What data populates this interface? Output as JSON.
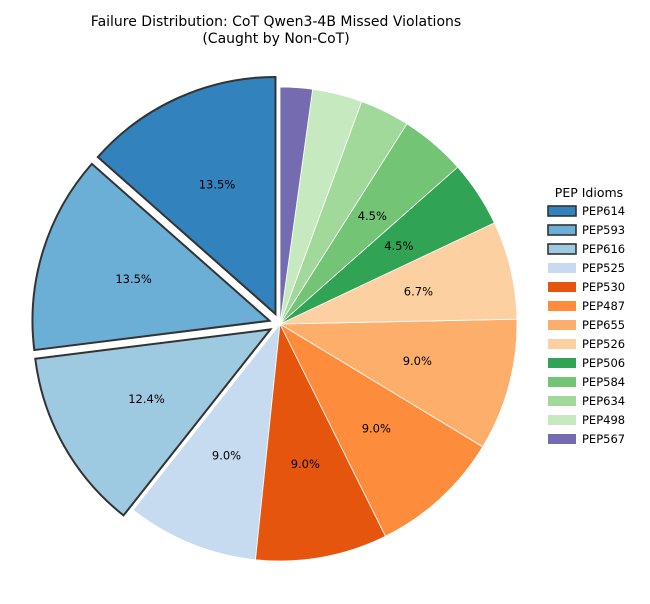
{
  "chart_data": {
    "type": "pie",
    "title": "Failure Distribution: CoT Qwen3-4B Missed Violations\n(Caught by Non-CoT)",
    "legend_title": "PEP Idioms",
    "legend_position": "right",
    "start_angle_deg": 90,
    "direction": "counterclockwise",
    "slices": [
      {
        "label": "PEP614",
        "value": 13.5,
        "pct_label": "13.5%",
        "color": "#3182bd",
        "exploded": true
      },
      {
        "label": "PEP593",
        "value": 13.5,
        "pct_label": "13.5%",
        "color": "#6baed6",
        "exploded": true
      },
      {
        "label": "PEP616",
        "value": 12.4,
        "pct_label": "12.4%",
        "color": "#9ecae1",
        "exploded": true
      },
      {
        "label": "PEP525",
        "value": 9.0,
        "pct_label": "9.0%",
        "color": "#c6dbef",
        "exploded": false
      },
      {
        "label": "PEP530",
        "value": 9.0,
        "pct_label": "9.0%",
        "color": "#e6550d",
        "exploded": false
      },
      {
        "label": "PEP487",
        "value": 9.0,
        "pct_label": "9.0%",
        "color": "#fd8d3c",
        "exploded": false
      },
      {
        "label": "PEP655",
        "value": 9.0,
        "pct_label": "9.0%",
        "color": "#fdae6b",
        "exploded": false
      },
      {
        "label": "PEP526",
        "value": 6.7,
        "pct_label": "6.7%",
        "color": "#fdd0a2",
        "exploded": false
      },
      {
        "label": "PEP506",
        "value": 4.5,
        "pct_label": "4.5%",
        "color": "#31a354",
        "exploded": false
      },
      {
        "label": "PEP584",
        "value": 4.5,
        "pct_label": "4.5%",
        "color": "#74c476",
        "exploded": false
      },
      {
        "label": "PEP634",
        "value": 3.4,
        "pct_label": "",
        "color": "#a1d99b",
        "exploded": false
      },
      {
        "label": "PEP498",
        "value": 3.4,
        "pct_label": "",
        "color": "#c7e9c0",
        "exploded": false
      },
      {
        "label": "PEP567",
        "value": 2.2,
        "pct_label": "",
        "color": "#756bb1",
        "exploded": false
      }
    ]
  }
}
